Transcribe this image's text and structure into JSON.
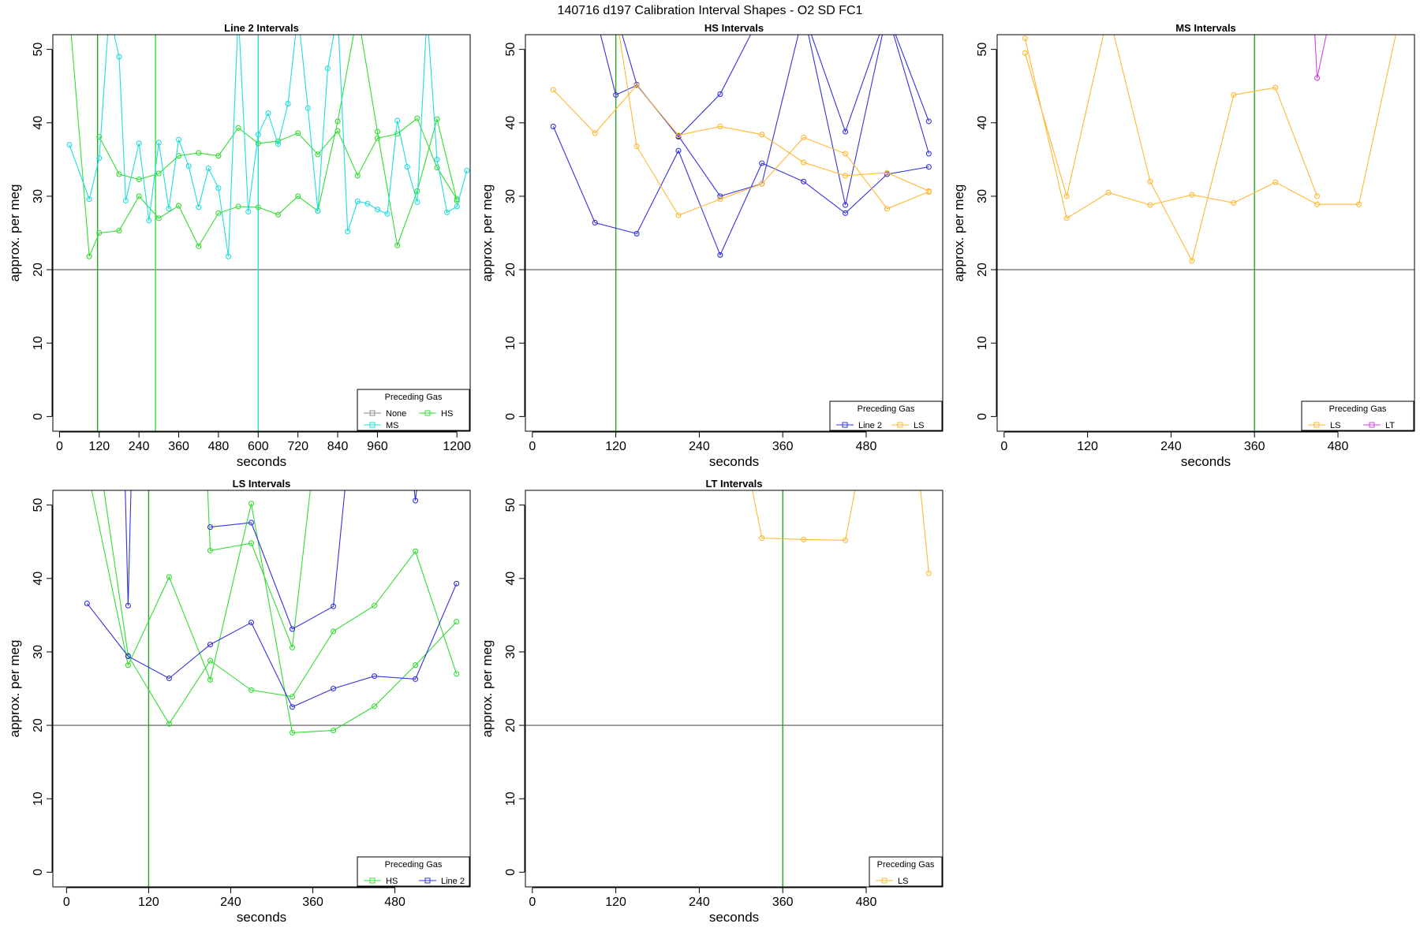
{
  "figure": {
    "title": "140716   d197   Calibration Interval Shapes - O2 SD FC1"
  },
  "chart_data": [
    {
      "type": "line",
      "title": "Line 2 Intervals",
      "xlabel": "seconds",
      "ylabel": "approx. per meg",
      "xlim": [
        -20,
        1240
      ],
      "ylim": [
        -2,
        52
      ],
      "xticks": [
        0,
        120,
        240,
        360,
        480,
        600,
        720,
        840,
        960,
        1200
      ],
      "yticks": [
        0,
        10,
        20,
        30,
        40,
        50
      ],
      "hlines": [
        {
          "y": 20,
          "color": "#555555"
        }
      ],
      "vlines": [
        {
          "x": 115,
          "color": "#22aa22"
        },
        {
          "x": 290,
          "color": "#33dd33"
        },
        {
          "x": 600,
          "color": "#22dddd"
        }
      ],
      "legend": {
        "title": "Preceding Gas",
        "position": "bottom-right",
        "columns": 2,
        "entries": [
          {
            "label": "None",
            "color": "#888888"
          },
          {
            "label": "HS",
            "color": "#33dd33"
          },
          {
            "label": "MS",
            "color": "#22dddd"
          }
        ]
      },
      "series": [
        {
          "color": "#33dd33",
          "x": [
            30,
            90,
            120,
            180,
            240,
            300,
            360,
            420,
            480,
            540,
            600,
            660,
            720,
            780,
            840,
            900,
            960,
            1020,
            1080,
            1140,
            1200
          ],
          "y": [
            55,
            21.8,
            25,
            25.3,
            30,
            27,
            28.7,
            23.2,
            27.7,
            28.6,
            28.5,
            27.5,
            30,
            28,
            40.2,
            55,
            38.8,
            23.3,
            30.7,
            40.5,
            29.4
          ]
        },
        {
          "color": "#33dd33",
          "x": [
            120,
            180,
            240,
            300,
            360,
            420,
            480,
            540,
            600,
            660,
            720,
            780,
            840,
            900,
            960,
            1020,
            1080,
            1140,
            1200
          ],
          "y": [
            38.1,
            33,
            32.3,
            33.1,
            35.5,
            35.9,
            35.5,
            39.3,
            37.2,
            37.5,
            38.6,
            35.7,
            38.9,
            32.8,
            37.9,
            38.5,
            40.6,
            33.9,
            29.6
          ]
        },
        {
          "color": "#22dddd",
          "x": [
            30,
            90,
            120,
            150,
            180,
            200,
            240,
            270,
            300,
            330,
            360,
            390,
            420,
            450,
            480,
            510,
            540,
            570,
            600,
            630,
            660,
            690,
            720,
            750,
            780,
            810,
            840,
            870,
            900,
            930,
            960,
            990,
            1020,
            1050,
            1080,
            1110,
            1140,
            1170,
            1200,
            1230
          ],
          "y": [
            37,
            29.6,
            35.2,
            55,
            49,
            29.4,
            37.2,
            26.7,
            37.3,
            28.3,
            37.7,
            34.1,
            28.5,
            33.8,
            31.1,
            21.8,
            55,
            27.9,
            38.4,
            41.3,
            37.1,
            42.6,
            55,
            42,
            28,
            47.4,
            55,
            25.2,
            29.3,
            29,
            28.2,
            27.6,
            40.3,
            34,
            29.2,
            55,
            35,
            27.8,
            28.6,
            33.5
          ]
        }
      ]
    },
    {
      "type": "line",
      "title": "HS Intervals",
      "xlabel": "seconds",
      "ylabel": "approx. per meg",
      "xlim": [
        -10,
        590
      ],
      "ylim": [
        -2,
        52
      ],
      "xticks": [
        0,
        120,
        240,
        360,
        480
      ],
      "yticks": [
        0,
        10,
        20,
        30,
        40,
        50
      ],
      "hlines": [
        {
          "y": 20,
          "color": "#555555"
        }
      ],
      "vlines": [
        {
          "x": 120,
          "color": "#22aa22"
        }
      ],
      "legend": {
        "title": "Preceding Gas",
        "position": "bottom-right",
        "columns": 2,
        "entries": [
          {
            "label": "Line 2",
            "color": "#3333dd"
          },
          {
            "label": "LS",
            "color": "#ffb833"
          }
        ]
      },
      "series": [
        {
          "color": "#3333dd",
          "x": [
            30,
            90,
            150,
            210,
            270,
            330,
            390,
            450,
            510,
            570
          ],
          "y": [
            39.5,
            26.4,
            24.9,
            36.2,
            22,
            34.5,
            32,
            27.7,
            33,
            34
          ]
        },
        {
          "color": "#3333dd",
          "x": [
            90,
            120,
            150,
            210,
            270,
            330,
            390,
            450,
            510,
            570
          ],
          "y": [
            55,
            43.8,
            45.1,
            38.2,
            30,
            31.7,
            55,
            28.8,
            55,
            35.8
          ]
        },
        {
          "color": "#3333dd",
          "x": [
            120,
            150,
            210,
            270,
            330,
            390,
            450,
            510,
            570
          ],
          "y": [
            55,
            45.2,
            38.1,
            43.9,
            55,
            55,
            38.8,
            55,
            40.2
          ]
        },
        {
          "color": "#ffb833",
          "x": [
            30,
            90,
            150,
            210,
            270,
            330,
            390,
            450,
            510,
            570
          ],
          "y": [
            44.5,
            38.6,
            45.1,
            38.3,
            39.5,
            38.4,
            34.6,
            32.8,
            33.2,
            30.7
          ]
        },
        {
          "color": "#ffb833",
          "x": [
            120,
            150,
            210,
            270,
            330,
            390,
            450,
            510,
            570
          ],
          "y": [
            55,
            36.8,
            27.4,
            29.6,
            31.7,
            38,
            35.8,
            28.3,
            30.6
          ]
        }
      ]
    },
    {
      "type": "line",
      "title": "MS Intervals",
      "xlabel": "seconds",
      "ylabel": "approx. per meg",
      "xlim": [
        -10,
        590
      ],
      "ylim": [
        -2,
        52
      ],
      "xticks": [
        0,
        120,
        240,
        360,
        480
      ],
      "yticks": [
        0,
        10,
        20,
        30,
        40,
        50
      ],
      "hlines": [
        {
          "y": 20,
          "color": "#555555"
        }
      ],
      "vlines": [
        {
          "x": 360,
          "color": "#22aa22"
        }
      ],
      "legend": {
        "title": "Preceding Gas",
        "position": "bottom-right",
        "columns": 2,
        "entries": [
          {
            "label": "LS",
            "color": "#ffb833"
          },
          {
            "label": "LT",
            "color": "#cc44dd"
          }
        ]
      },
      "series": [
        {
          "color": "#ffb833",
          "x": [
            30,
            90,
            150,
            210,
            270,
            330,
            390,
            450,
            510,
            570
          ],
          "y": [
            51.5,
            27,
            30.5,
            28.8,
            30.2,
            29.1,
            31.9,
            28.9,
            28.9,
            55
          ]
        },
        {
          "color": "#ffb833",
          "x": [
            30,
            90,
            150,
            210,
            270,
            330,
            390,
            450
          ],
          "y": [
            49.5,
            30,
            55,
            32,
            21.2,
            43.8,
            44.8,
            30
          ]
        },
        {
          "color": "#cc44dd",
          "x": [
            445,
            450,
            470
          ],
          "y": [
            55,
            46.1,
            55
          ]
        }
      ]
    },
    {
      "type": "line",
      "title": "LS Intervals",
      "xlabel": "seconds",
      "ylabel": "approx. per meg",
      "xlim": [
        -20,
        590
      ],
      "ylim": [
        -2,
        52
      ],
      "xticks": [
        0,
        120,
        240,
        360,
        480
      ],
      "yticks": [
        0,
        10,
        20,
        30,
        40,
        50
      ],
      "hlines": [
        {
          "y": 20,
          "color": "#555555"
        }
      ],
      "vlines": [
        {
          "x": 120,
          "color": "#22aa22"
        }
      ],
      "legend": {
        "title": "Preceding Gas",
        "position": "bottom-right",
        "columns": 2,
        "entries": [
          {
            "label": "HS",
            "color": "#33dd33"
          },
          {
            "label": "Line 2",
            "color": "#3333dd"
          }
        ]
      },
      "series": [
        {
          "color": "#33dd33",
          "x": [
            30,
            90,
            150,
            210,
            270,
            330,
            390,
            450,
            510,
            570
          ],
          "y": [
            55,
            28.2,
            40.2,
            26.2,
            50.2,
            19,
            19.3,
            22.6,
            28.2,
            34.1
          ]
        },
        {
          "color": "#33dd33",
          "x": [
            50,
            90,
            150,
            210,
            270,
            330,
            390,
            450,
            510,
            570
          ],
          "y": [
            55,
            29.5,
            20.2,
            28.8,
            24.8,
            23.9,
            32.8,
            36.3,
            43.7,
            27
          ]
        },
        {
          "color": "#33dd33",
          "x": [
            205,
            210,
            270,
            330,
            360
          ],
          "y": [
            55,
            43.8,
            44.8,
            30.6,
            55
          ]
        },
        {
          "color": "#3333dd",
          "x": [
            30,
            90,
            150,
            210,
            270,
            330,
            390,
            450,
            510,
            570
          ],
          "y": [
            36.6,
            29.4,
            26.4,
            31,
            34,
            22.5,
            25,
            26.7,
            26.3,
            39.3
          ]
        },
        {
          "color": "#3333dd",
          "x": [
            85,
            90,
            95
          ],
          "y": [
            55,
            36.3,
            55
          ]
        },
        {
          "color": "#3333dd",
          "x": [
            210,
            270,
            330,
            390,
            410
          ],
          "y": [
            47,
            47.6,
            33.1,
            36.2,
            55
          ]
        },
        {
          "color": "#3333dd",
          "x": [
            505,
            510,
            515
          ],
          "y": [
            55,
            50.6,
            55
          ]
        }
      ]
    },
    {
      "type": "line",
      "title": "LT Intervals",
      "xlabel": "seconds",
      "ylabel": "approx. per meg",
      "xlim": [
        -10,
        590
      ],
      "ylim": [
        -2,
        52
      ],
      "xticks": [
        0,
        120,
        240,
        360,
        480
      ],
      "yticks": [
        0,
        10,
        20,
        30,
        40,
        50
      ],
      "hlines": [
        {
          "y": 20,
          "color": "#555555"
        }
      ],
      "vlines": [
        {
          "x": 360,
          "color": "#22aa22"
        }
      ],
      "legend": {
        "title": "Preceding Gas",
        "position": "bottom-right",
        "columns": 1,
        "entries": [
          {
            "label": "LS",
            "color": "#ffb833"
          }
        ]
      },
      "series": [
        {
          "color": "#ffb833",
          "x": [
            310,
            330,
            390,
            450,
            470
          ],
          "y": [
            55,
            45.5,
            45.3,
            45.2,
            55
          ]
        },
        {
          "color": "#ffb833",
          "x": [
            555,
            570
          ],
          "y": [
            55,
            40.7
          ]
        }
      ]
    }
  ]
}
